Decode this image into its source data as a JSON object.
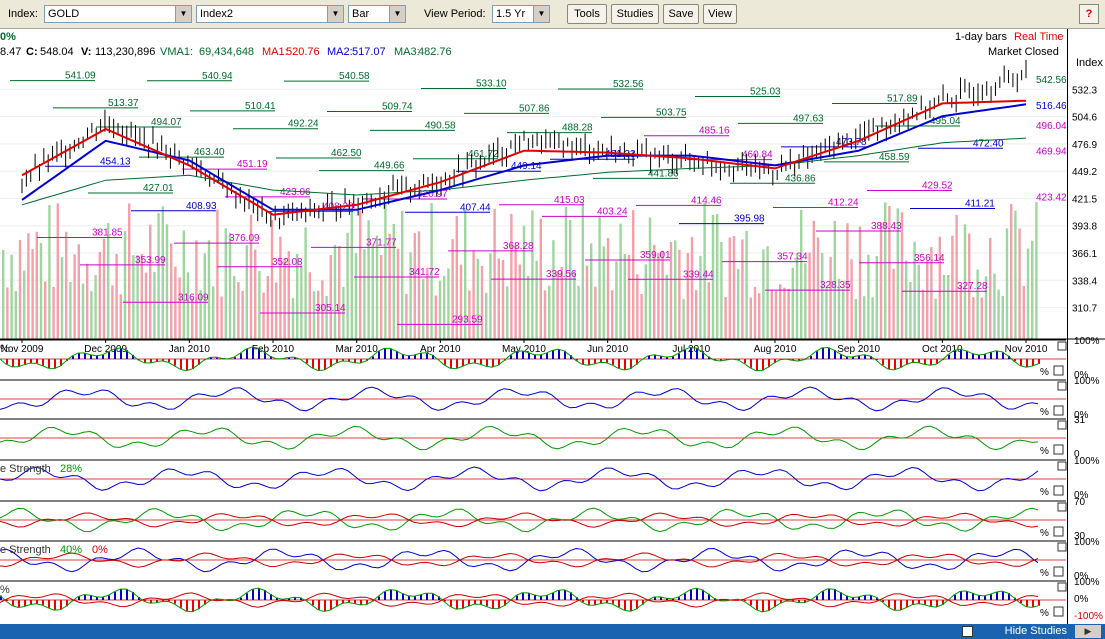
{
  "toolbar": {
    "index_label": "Index:",
    "symbol_value": "GOLD",
    "compare_value": "Index2",
    "chart_type_value": "Bar",
    "view_period_label": "View Period:",
    "view_period_value": "1.5 Yr",
    "tools_label": "Tools",
    "studies_label": "Studies",
    "save_label": "Save",
    "view_label": "View",
    "help_label": "?"
  },
  "info": {
    "change_pct": "0%",
    "low": "8.47",
    "close_label": "C:",
    "close": "548.04",
    "volume_label": "V:",
    "volume": "113,230,896",
    "vma1_label": "VMA1:",
    "vma1": "69,434,648",
    "ma1_label": "MA1:",
    "ma1": "520.76",
    "ma2_label": "MA2:",
    "ma2": "517.07",
    "ma3_label": "MA3:",
    "ma3": "482.76",
    "bars_label": "1-day bars",
    "realtime_label": "Real Time",
    "market_status": "Market Closed",
    "axis_title": "Index"
  },
  "colors": {
    "ma1": "#e00000",
    "ma2": "#0000d0",
    "ma3": "#006b2d",
    "up_volume": "#9fd6a0",
    "down_volume": "#f4a0a8",
    "support": "#cc00cc",
    "resistance": "#006b2d",
    "status_bar": "#1a63b0"
  },
  "chart_data": {
    "type": "line",
    "title": "GOLD",
    "ylim": [
      293.0,
      560.0
    ],
    "y_ticks": [
      310.7,
      338.4,
      366.1,
      393.8,
      421.5,
      449.2,
      476.9,
      504.6,
      532.3
    ],
    "x_ticks": [
      "Nov 2009",
      "Dec 2009",
      "Jan 2010",
      "Feb 2010",
      "Mar 2010",
      "Apr 2010",
      "May 2010",
      "Jun 2010",
      "Jul 2010",
      "Aug 2010",
      "Sep 2010",
      "Oct 2010",
      "Nov 2010"
    ],
    "right_labels": [
      {
        "text": "542.56",
        "value": 542.56,
        "color": "#006b2d"
      },
      {
        "text": "516.46",
        "value": 516.46,
        "color": "#0000d0"
      },
      {
        "text": "496.04",
        "value": 496.04,
        "color": "#cc00cc"
      },
      {
        "text": "469.94",
        "value": 469.94,
        "color": "#cc00cc"
      },
      {
        "text": "423.42",
        "value": 423.42,
        "color": "#cc00cc"
      }
    ],
    "price": {
      "x": [
        "Nov 2009",
        "Dec 2009",
        "Jan 2010",
        "Feb 2010",
        "Mar 2010",
        "Apr 2010",
        "May 2010",
        "Jun 2010",
        "Jul 2010",
        "Aug 2010",
        "Sep 2010",
        "Oct 2010",
        "Nov 2010"
      ],
      "close": [
        440,
        500,
        458,
        400,
        418,
        440,
        480,
        470,
        460,
        450,
        485,
        520,
        548
      ],
      "ma1": [
        445,
        492,
        455,
        405,
        415,
        438,
        470,
        468,
        462,
        452,
        480,
        518,
        520.76
      ],
      "ma2": [
        420,
        480,
        460,
        410,
        410,
        430,
        455,
        465,
        465,
        455,
        470,
        505,
        517.07
      ],
      "ma3": [
        415,
        440,
        445,
        430,
        425,
        430,
        440,
        448,
        452,
        455,
        465,
        478,
        482.76
      ]
    },
    "annotations": [
      {
        "text": "541.09",
        "value": 541.09,
        "color": "#006b2d"
      },
      {
        "text": "540.94",
        "value": 540.94,
        "color": "#006b2d"
      },
      {
        "text": "540.58",
        "value": 540.58,
        "color": "#006b2d"
      },
      {
        "text": "533.10",
        "value": 533.1,
        "color": "#006b2d"
      },
      {
        "text": "532.56",
        "value": 532.56,
        "color": "#006b2d"
      },
      {
        "text": "525.03",
        "value": 525.03,
        "color": "#006b2d"
      },
      {
        "text": "517.89",
        "value": 517.89,
        "color": "#006b2d"
      },
      {
        "text": "513.37",
        "value": 513.37,
        "color": "#006b2d"
      },
      {
        "text": "510.41",
        "value": 510.41,
        "color": "#006b2d"
      },
      {
        "text": "509.74",
        "value": 509.74,
        "color": "#006b2d"
      },
      {
        "text": "507.86",
        "value": 507.86,
        "color": "#006b2d"
      },
      {
        "text": "503.75",
        "value": 503.75,
        "color": "#006b2d"
      },
      {
        "text": "497.63",
        "value": 497.63,
        "color": "#006b2d"
      },
      {
        "text": "495.04",
        "value": 495.04,
        "color": "#006b2d"
      },
      {
        "text": "494.07",
        "value": 494.07,
        "color": "#006b2d"
      },
      {
        "text": "492.24",
        "value": 492.24,
        "color": "#006b2d"
      },
      {
        "text": "490.58",
        "value": 490.58,
        "color": "#006b2d"
      },
      {
        "text": "488.28",
        "value": 488.28,
        "color": "#006b2d"
      },
      {
        "text": "485.16",
        "value": 485.16,
        "color": "#cc00cc"
      },
      {
        "text": "473.78",
        "value": 473.78,
        "color": "#0000d0"
      },
      {
        "text": "472.40",
        "value": 472.4,
        "color": "#0000d0"
      },
      {
        "text": "463.40",
        "value": 463.4,
        "color": "#006b2d"
      },
      {
        "text": "462.50",
        "value": 462.5,
        "color": "#006b2d"
      },
      {
        "text": "461.72",
        "value": 461.72,
        "color": "#006b2d"
      },
      {
        "text": "461.33",
        "value": 461.33,
        "color": "#0000d0"
      },
      {
        "text": "460.84",
        "value": 460.84,
        "color": "#cc00cc"
      },
      {
        "text": "458.59",
        "value": 458.59,
        "color": "#006b2d"
      },
      {
        "text": "454.13",
        "value": 454.13,
        "color": "#0000d0"
      },
      {
        "text": "451.19",
        "value": 451.19,
        "color": "#cc00cc"
      },
      {
        "text": "449.66",
        "value": 449.66,
        "color": "#006b2d"
      },
      {
        "text": "449.14",
        "value": 449.14,
        "color": "#0000d0"
      },
      {
        "text": "441.86",
        "value": 441.86,
        "color": "#006b2d"
      },
      {
        "text": "436.86",
        "value": 436.86,
        "color": "#006b2d"
      },
      {
        "text": "429.52",
        "value": 429.52,
        "color": "#cc00cc"
      },
      {
        "text": "427.01",
        "value": 427.01,
        "color": "#006b2d"
      },
      {
        "text": "423.06",
        "value": 423.06,
        "color": "#cc00cc"
      },
      {
        "text": "420.97",
        "value": 420.97,
        "color": "#cc00cc"
      },
      {
        "text": "415.03",
        "value": 415.03,
        "color": "#cc00cc"
      },
      {
        "text": "414.46",
        "value": 414.46,
        "color": "#cc00cc"
      },
      {
        "text": "412.24",
        "value": 412.24,
        "color": "#cc00cc"
      },
      {
        "text": "411.21",
        "value": 411.21,
        "color": "#0000d0"
      },
      {
        "text": "408.93",
        "value": 408.93,
        "color": "#0000d0"
      },
      {
        "text": "408.28",
        "value": 408.28,
        "color": "#cc00cc"
      },
      {
        "text": "407.44",
        "value": 407.44,
        "color": "#0000d0"
      },
      {
        "text": "403.24",
        "value": 403.24,
        "color": "#cc00cc"
      },
      {
        "text": "395.98",
        "value": 395.98,
        "color": "#0000d0"
      },
      {
        "text": "388.43",
        "value": 388.43,
        "color": "#cc00cc"
      },
      {
        "text": "381.85",
        "value": 381.85,
        "color": "#cc00cc"
      },
      {
        "text": "376.09",
        "value": 376.09,
        "color": "#cc00cc"
      },
      {
        "text": "371.77",
        "value": 371.77,
        "color": "#cc00cc"
      },
      {
        "text": "368.28",
        "value": 368.28,
        "color": "#cc00cc"
      },
      {
        "text": "359.01",
        "value": 359.01,
        "color": "#cc00cc"
      },
      {
        "text": "357.34",
        "value": 357.34,
        "color": "#cc00cc"
      },
      {
        "text": "356.14",
        "value": 356.14,
        "color": "#cc00cc"
      },
      {
        "text": "353.99",
        "value": 353.99,
        "color": "#cc00cc"
      },
      {
        "text": "352.08",
        "value": 352.08,
        "color": "#cc00cc"
      },
      {
        "text": "341.72",
        "value": 341.72,
        "color": "#cc00cc"
      },
      {
        "text": "339.56",
        "value": 339.56,
        "color": "#cc00cc"
      },
      {
        "text": "339.44",
        "value": 339.44,
        "color": "#cc00cc"
      },
      {
        "text": "328.35",
        "value": 328.35,
        "color": "#cc00cc"
      },
      {
        "text": "327.28",
        "value": 327.28,
        "color": "#cc00cc"
      },
      {
        "text": "316.09",
        "value": 316.09,
        "color": "#cc00cc"
      },
      {
        "text": "305.14",
        "value": 305.14,
        "color": "#cc00cc"
      },
      {
        "text": "293.59",
        "value": 293.59,
        "color": "#cc00cc"
      }
    ]
  },
  "studies": [
    {
      "name": "study-1",
      "label": "%",
      "axis": [
        "100%",
        "0%"
      ],
      "legend_value": ""
    },
    {
      "name": "study-2",
      "label": "",
      "axis": [
        "100%",
        "0%"
      ],
      "legend_value": ""
    },
    {
      "name": "study-3",
      "label": "",
      "axis": [
        "31",
        "0"
      ],
      "legend_value": ""
    },
    {
      "name": "study-4",
      "label": "e Strength",
      "axis": [
        "100%",
        "0%"
      ],
      "legend_value": "28%"
    },
    {
      "name": "study-5",
      "label": "",
      "axis": [
        "70",
        "30"
      ],
      "legend_value": ""
    },
    {
      "name": "study-6",
      "label": "e Strength",
      "axis": [
        "100%",
        "0%"
      ],
      "legend_value": "40%",
      "legend_value2": "0%"
    },
    {
      "name": "study-7",
      "label": "%",
      "axis": [
        "100%",
        "0%",
        "-100%"
      ],
      "legend_value": ""
    }
  ],
  "status": {
    "hide_studies_label": "Hide Studies",
    "play_label": "▶"
  }
}
